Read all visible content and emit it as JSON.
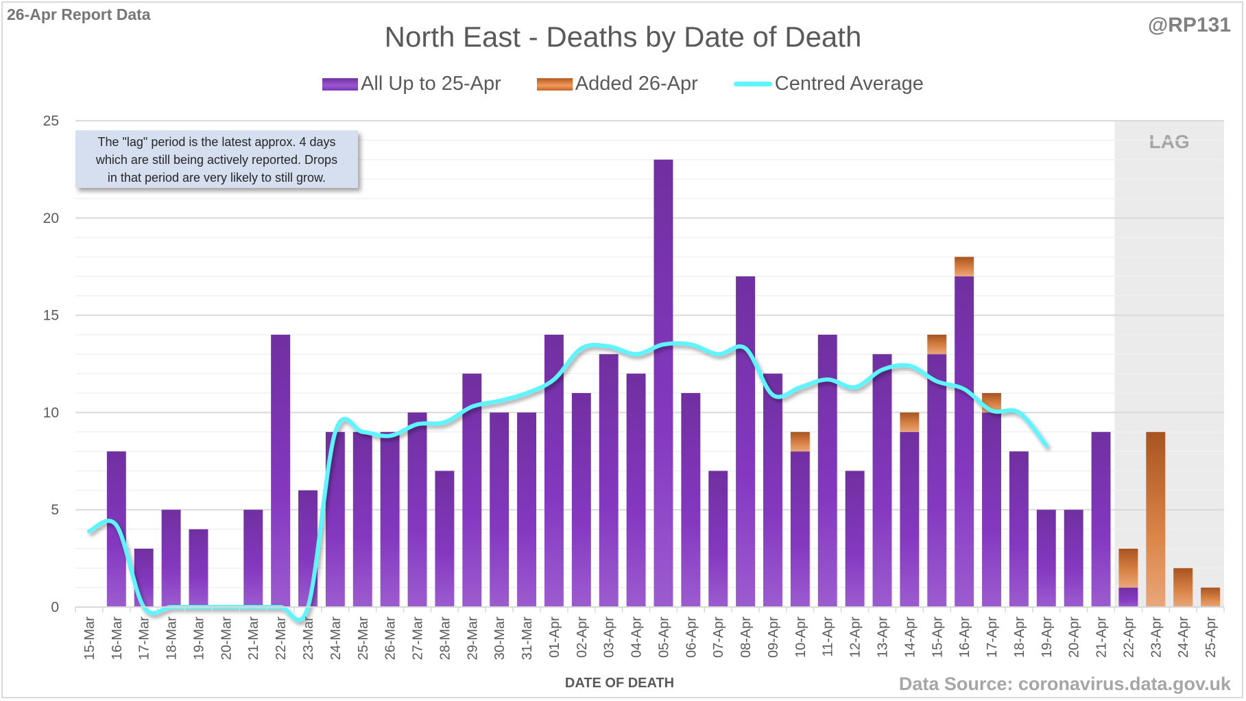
{
  "header": {
    "report_label": "26-Apr Report Data",
    "handle": "@RP131",
    "source": "Data Source: coronavirus.data.gov.uk"
  },
  "note": {
    "line1": "The \"lag\" period is the latest approx. 4 days",
    "line2": "which are still being actively reported.  Drops",
    "line3": "in that period are very likely to still grow."
  },
  "colors": {
    "all_up_to": "#7a33b3",
    "added": "#d5803f",
    "centred_average": "#5df5ff",
    "lag_shade": "#ebebeb"
  },
  "chart_data": {
    "type": "bar",
    "stacked": true,
    "title": "North East - Deaths by Date of Death",
    "xlabel": "DATE OF DEATH",
    "ylabel": "",
    "ylim": [
      0,
      25
    ],
    "yticks": [
      0,
      5,
      10,
      15,
      20,
      25
    ],
    "grid": true,
    "legend_position": "top-center",
    "lag_label": "LAG",
    "lag_categories": [
      "22-Apr",
      "23-Apr",
      "24-Apr",
      "25-Apr"
    ],
    "categories": [
      "15-Mar",
      "16-Mar",
      "17-Mar",
      "18-Mar",
      "19-Mar",
      "20-Mar",
      "21-Mar",
      "22-Mar",
      "23-Mar",
      "24-Mar",
      "25-Mar",
      "26-Mar",
      "27-Mar",
      "28-Mar",
      "29-Mar",
      "30-Mar",
      "31-Mar",
      "01-Apr",
      "02-Apr",
      "03-Apr",
      "04-Apr",
      "05-Apr",
      "06-Apr",
      "07-Apr",
      "08-Apr",
      "09-Apr",
      "10-Apr",
      "11-Apr",
      "12-Apr",
      "13-Apr",
      "14-Apr",
      "15-Apr",
      "16-Apr",
      "17-Apr",
      "18-Apr",
      "19-Apr",
      "20-Apr",
      "21-Apr",
      "22-Apr",
      "23-Apr",
      "24-Apr",
      "25-Apr"
    ],
    "series": [
      {
        "name": "All Up to 25-Apr",
        "type": "bar",
        "values": [
          0,
          8,
          3,
          5,
          4,
          0,
          5,
          14,
          6,
          9,
          9,
          9,
          10,
          7,
          12,
          10,
          10,
          14,
          11,
          13,
          12,
          23,
          11,
          7,
          17,
          12,
          8,
          14,
          7,
          13,
          9,
          13,
          17,
          10,
          8,
          5,
          5,
          9,
          1,
          0,
          0,
          0
        ]
      },
      {
        "name": "Added 26-Apr",
        "type": "bar",
        "values": [
          0,
          0,
          0,
          0,
          0,
          0,
          0,
          0,
          0,
          0,
          0,
          0,
          0,
          0,
          0,
          0,
          0,
          0,
          0,
          0,
          0,
          0,
          0,
          0,
          0,
          0,
          1,
          0,
          0,
          0,
          1,
          1,
          1,
          1,
          0,
          0,
          0,
          0,
          2,
          9,
          2,
          1
        ]
      },
      {
        "name": "Centred Average",
        "type": "line",
        "values": [
          3.9,
          4.2,
          0,
          0,
          0,
          0,
          0,
          0,
          0,
          9.0,
          9.0,
          8.8,
          9.4,
          9.5,
          10.3,
          10.6,
          11.0,
          11.7,
          13.3,
          13.4,
          13.0,
          13.5,
          13.5,
          13.0,
          13.3,
          10.9,
          11.3,
          11.7,
          11.3,
          12.2,
          12.4,
          11.6,
          11.2,
          10.1,
          10.0,
          8.3,
          null,
          null,
          null,
          null,
          null,
          null
        ]
      }
    ]
  }
}
